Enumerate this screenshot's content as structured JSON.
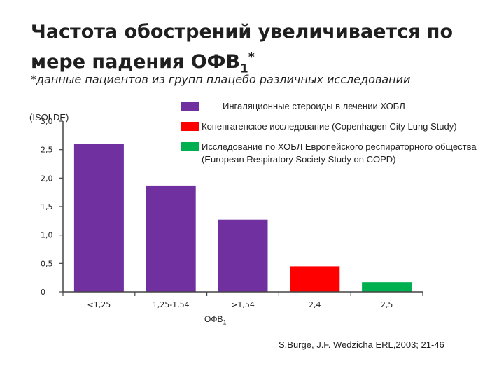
{
  "slide": {
    "title_line1": "Частота обострений увеличивается по",
    "title_line2": "мере падения ОФВ",
    "title_sub": "1",
    "title_sup": "*",
    "subtitle": "*данные пациентов из групп плацебо различных исследовании",
    "ylabel_note": "(ISOLDE)",
    "xunit": "ОФВ",
    "xunit_sub": "1",
    "citation": "S.Burge, J.F. Wedzicha ERL,2003; 21-46"
  },
  "legend": [
    {
      "label": "Ингаляционные стероиды в лечении ХОБЛ",
      "color": "#7030a0"
    },
    {
      "label": "Копенгагенское исследование (Copenhagen City Lung Study)",
      "color": "#ff0000"
    },
    {
      "label": "Исследование по ХОБЛ Европейского респираторного общества",
      "label2": "(European Respiratory Society  Study on COPD)",
      "color": "#00b050"
    }
  ],
  "chart_data": {
    "type": "bar",
    "categories": [
      "<1,25",
      "1,25-1,54",
      ">1,54",
      "2,4",
      "2,5"
    ],
    "values": [
      2.6,
      1.87,
      1.27,
      0.45,
      0.17
    ],
    "colors": [
      "#7030a0",
      "#7030a0",
      "#7030a0",
      "#ff0000",
      "#00b050"
    ],
    "yticks": [
      0,
      0.5,
      1.0,
      1.5,
      2.0,
      2.5,
      3.0
    ],
    "ytick_labels": [
      "0",
      "0,5",
      "1,0",
      "1,5",
      "2,0",
      "2,5",
      "3,0"
    ],
    "ylim": [
      0,
      3.0
    ],
    "xlabel": "ОФВ1",
    "grid": false
  }
}
